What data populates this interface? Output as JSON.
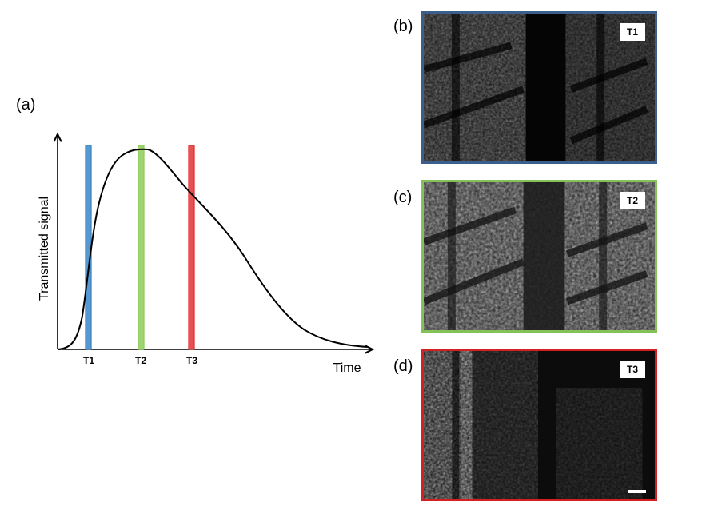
{
  "labels": {
    "a": "(a)",
    "b": "(b)",
    "c": "(c)",
    "d": "(d)"
  },
  "plot": {
    "ylabel": "Transmitted signal",
    "xlabel": "Time",
    "markers": [
      {
        "name": "T1",
        "color": "#3a86c8"
      },
      {
        "name": "T2",
        "color": "#8fcd5a"
      },
      {
        "name": "T3",
        "color": "#e23434"
      }
    ]
  },
  "panels": [
    {
      "tag": "T1",
      "border": "#3c5e8c"
    },
    {
      "tag": "T2",
      "border": "#84c156"
    },
    {
      "tag": "T3",
      "border": "#d42020"
    }
  ]
}
